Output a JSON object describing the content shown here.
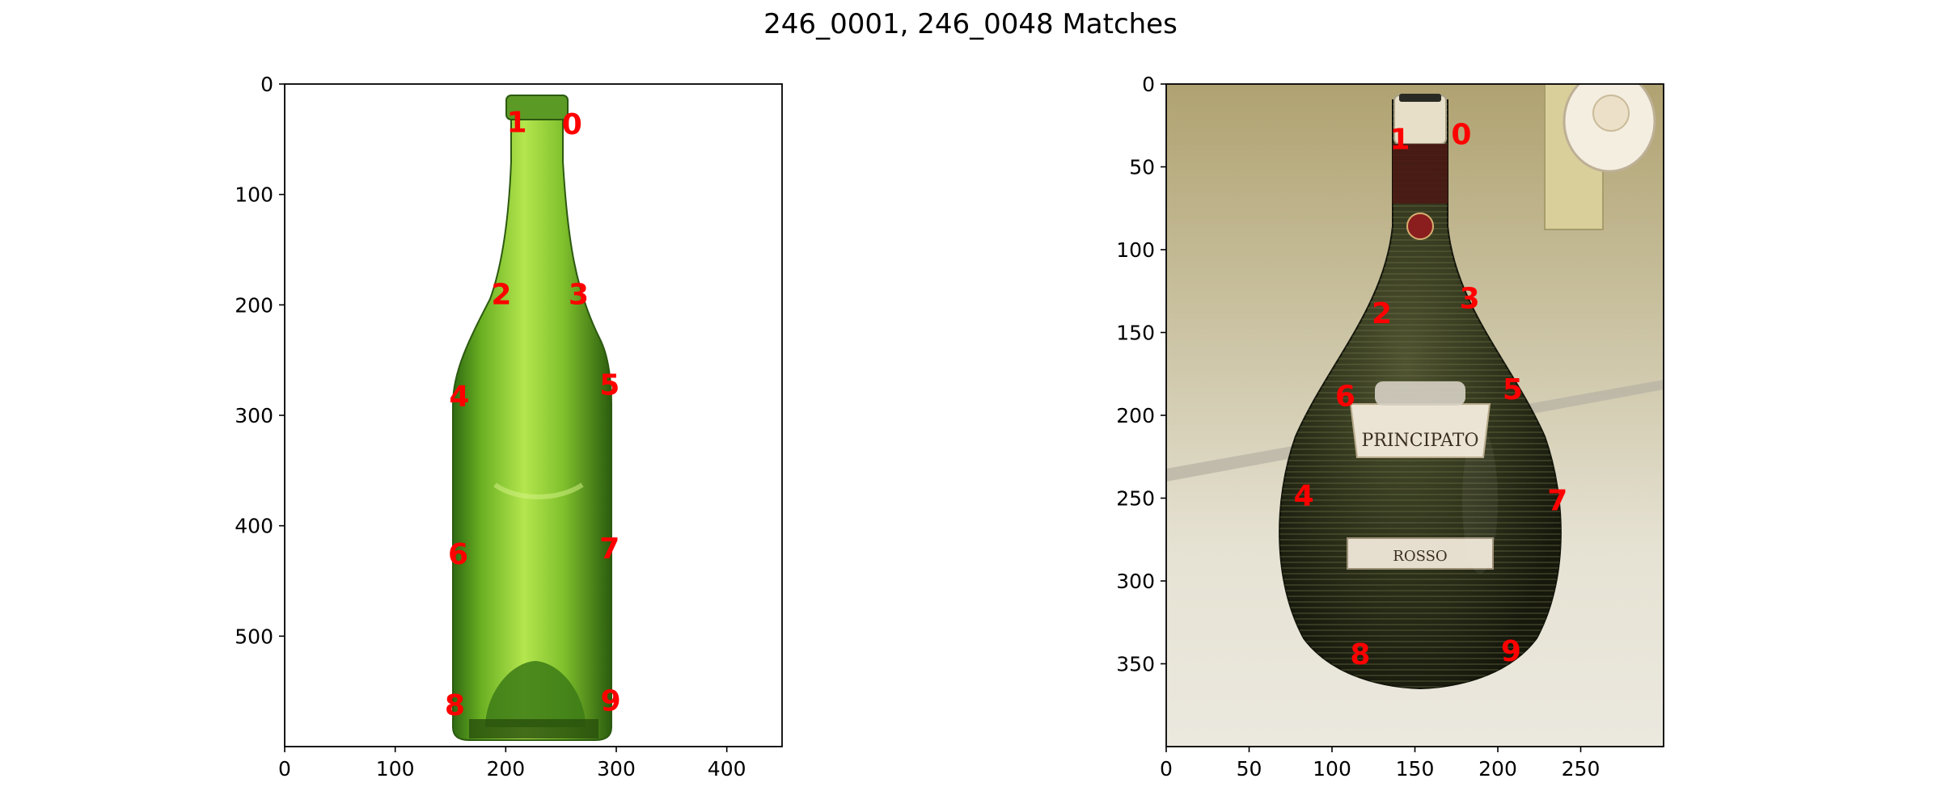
{
  "title": "246_0001, 246_0048 Matches",
  "colors": {
    "keypoint": "#ff0000",
    "axis": "#000000",
    "background": "#ffffff"
  },
  "chart_data": [
    {
      "type": "scatter",
      "image": "green-glass-wine-bottle-photo",
      "xlim": [
        0,
        450
      ],
      "ylim": [
        600,
        0
      ],
      "xticks": [
        "0",
        "100",
        "200",
        "300",
        "400"
      ],
      "yticks": [
        "0",
        "100",
        "200",
        "300",
        "400",
        "500"
      ],
      "points": [
        {
          "label": "0",
          "x": 260,
          "y": 36
        },
        {
          "label": "1",
          "x": 210,
          "y": 34
        },
        {
          "label": "2",
          "x": 196,
          "y": 190
        },
        {
          "label": "3",
          "x": 266,
          "y": 190
        },
        {
          "label": "4",
          "x": 158,
          "y": 282
        },
        {
          "label": "5",
          "x": 294,
          "y": 272
        },
        {
          "label": "6",
          "x": 157,
          "y": 425
        },
        {
          "label": "7",
          "x": 294,
          "y": 420
        },
        {
          "label": "8",
          "x": 154,
          "y": 562
        },
        {
          "label": "9",
          "x": 295,
          "y": 558
        }
      ]
    },
    {
      "type": "scatter",
      "image": "wrapped-principato-rosso-bottle-photo",
      "image_text": {
        "label_top": "PRINCIPATO",
        "label_bottom": "ROSSO"
      },
      "xlim": [
        0,
        300
      ],
      "ylim": [
        400,
        0
      ],
      "xticks": [
        "0",
        "50",
        "100",
        "150",
        "200",
        "250"
      ],
      "yticks": [
        "0",
        "50",
        "100",
        "150",
        "200",
        "250",
        "300",
        "350"
      ],
      "points": [
        {
          "label": "0",
          "x": 178,
          "y": 30
        },
        {
          "label": "1",
          "x": 141,
          "y": 33
        },
        {
          "label": "2",
          "x": 130,
          "y": 138
        },
        {
          "label": "3",
          "x": 183,
          "y": 129
        },
        {
          "label": "4",
          "x": 83,
          "y": 248
        },
        {
          "label": "5",
          "x": 209,
          "y": 184
        },
        {
          "label": "6",
          "x": 108,
          "y": 188
        },
        {
          "label": "7",
          "x": 236,
          "y": 251
        },
        {
          "label": "8",
          "x": 117,
          "y": 344
        },
        {
          "label": "9",
          "x": 208,
          "y": 342
        }
      ]
    }
  ]
}
